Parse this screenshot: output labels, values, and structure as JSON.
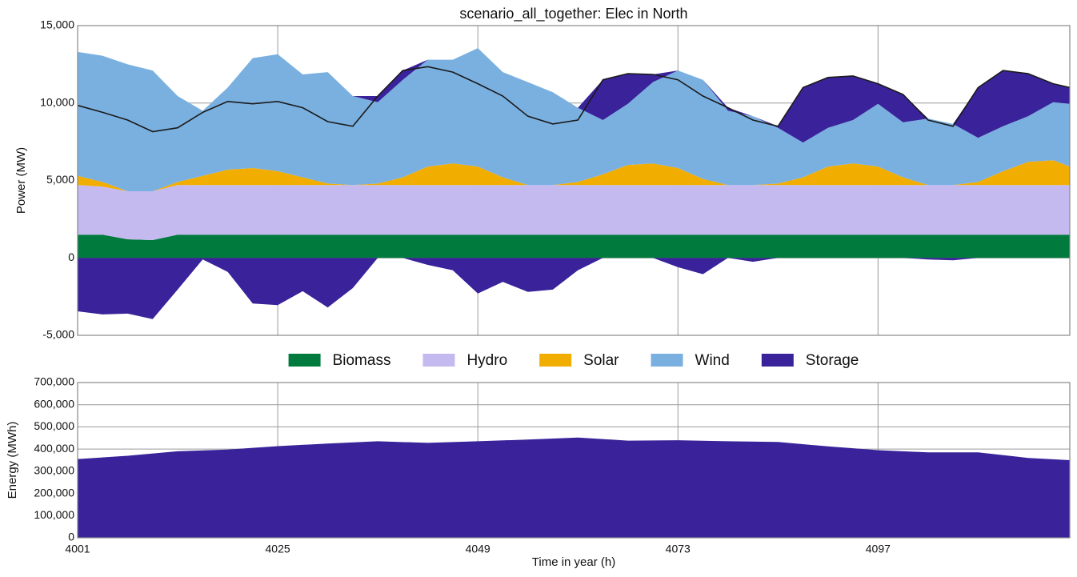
{
  "chart_data": [
    {
      "type": "stacked-area",
      "title": "scenario_all_together: Elec in North",
      "ylabel": "Power (MW)",
      "x": [
        4001,
        4004,
        4007,
        4010,
        4013,
        4016,
        4019,
        4022,
        4025,
        4028,
        4031,
        4034,
        4037,
        4040,
        4043,
        4046,
        4049,
        4052,
        4055,
        4058,
        4061,
        4064,
        4067,
        4070,
        4073,
        4076,
        4079,
        4082,
        4085,
        4088,
        4091,
        4094,
        4097,
        4100,
        4103,
        4106,
        4109,
        4112,
        4115,
        4118,
        4120
      ],
      "series": [
        {
          "name": "Biomass",
          "color": "#007a3d",
          "values": [
            1500,
            1500,
            1200,
            1150,
            1500,
            1500,
            1500,
            1500,
            1500,
            1500,
            1500,
            1500,
            1500,
            1500,
            1500,
            1500,
            1500,
            1500,
            1500,
            1500,
            1500,
            1500,
            1500,
            1500,
            1500,
            1500,
            1500,
            1500,
            1500,
            1500,
            1500,
            1500,
            1500,
            1500,
            1500,
            1500,
            1500,
            1500,
            1500,
            1500,
            1500
          ]
        },
        {
          "name": "Hydro",
          "color": "#c5baf0",
          "values": [
            3200,
            3100,
            3100,
            3150,
            3200,
            3200,
            3200,
            3200,
            3200,
            3200,
            3200,
            3200,
            3200,
            3200,
            3200,
            3200,
            3200,
            3200,
            3200,
            3200,
            3200,
            3200,
            3200,
            3200,
            3200,
            3200,
            3200,
            3200,
            3200,
            3200,
            3200,
            3200,
            3200,
            3200,
            3200,
            3200,
            3200,
            3200,
            3200,
            3200,
            3200
          ]
        },
        {
          "name": "Solar",
          "color": "#f2ae00",
          "values": [
            600,
            300,
            0,
            0,
            200,
            600,
            1000,
            1100,
            900,
            500,
            100,
            0,
            100,
            500,
            1200,
            1400,
            1200,
            500,
            0,
            0,
            200,
            700,
            1300,
            1400,
            1100,
            400,
            0,
            0,
            100,
            500,
            1200,
            1400,
            1200,
            500,
            0,
            0,
            200,
            900,
            1500,
            1600,
            1200
          ]
        },
        {
          "name": "Wind",
          "color": "#7ab0e0",
          "values": [
            8000,
            8150,
            8200,
            7800,
            5550,
            4200,
            5300,
            7100,
            7550,
            6650,
            7200,
            5750,
            5250,
            6300,
            6900,
            6700,
            7650,
            6800,
            6650,
            6000,
            4800,
            3500,
            3950,
            5250,
            6300,
            6400,
            4800,
            4450,
            3600,
            2250,
            2500,
            2800,
            4050,
            3550,
            4300,
            3950,
            2850,
            2900,
            2950,
            3750,
            4050
          ]
        },
        {
          "name": "Storage",
          "color": "#3a239a",
          "values": [
            -3450,
            -3650,
            -3600,
            -3950,
            -2050,
            -100,
            -900,
            -2950,
            -3050,
            -2150,
            -3200,
            -1950,
            400,
            600,
            -450,
            -800,
            -2300,
            -1550,
            -2200,
            -2050,
            -800,
            2600,
            1950,
            500,
            -600,
            -1050,
            200,
            -250,
            100,
            3550,
            3250,
            2850,
            1300,
            1800,
            -100,
            -150,
            3250,
            3600,
            2750,
            1200,
            1050
          ]
        }
      ],
      "line": {
        "color": "#1a1a1a",
        "values": [
          9850,
          9400,
          8900,
          8150,
          8400,
          9400,
          10100,
          9950,
          10100,
          9700,
          8800,
          8500,
          10450,
          12100,
          12350,
          12000,
          11250,
          10450,
          9150,
          8650,
          8900,
          11500,
          11900,
          11850,
          11500,
          10450,
          9700,
          8900,
          8500,
          11000,
          11650,
          11750,
          11250,
          10550,
          8900,
          8500,
          11000,
          12100,
          11900,
          11250,
          11000
        ]
      },
      "xlim": [
        4001,
        4120
      ],
      "xticks": [
        4001,
        4025,
        4049,
        4073,
        4097
      ],
      "ylim": [
        -5000,
        15000
      ],
      "yticks": [
        {
          "value": -5000,
          "label": "-5,000"
        },
        0,
        {
          "value": 5000,
          "label": "5,000"
        },
        {
          "value": 10000,
          "label": "10,000"
        },
        {
          "value": 15000,
          "label": "15,000"
        }
      ],
      "grid": true,
      "legend": "below"
    },
    {
      "type": "area",
      "ylabel": "Energy (MWh)",
      "xlabel": "Time in year (h)",
      "color": "#3a239a",
      "x": [
        4001,
        4007,
        4013,
        4019,
        4025,
        4031,
        4037,
        4043,
        4049,
        4055,
        4061,
        4067,
        4073,
        4079,
        4085,
        4091,
        4097,
        4103,
        4109,
        4115,
        4120
      ],
      "values": [
        355000,
        370000,
        390000,
        398000,
        413000,
        425000,
        435000,
        428000,
        435000,
        443000,
        452000,
        438000,
        440000,
        435000,
        432000,
        412000,
        395000,
        385000,
        385000,
        360000,
        350000
      ],
      "xlim": [
        4001,
        4120
      ],
      "xticks": [
        4001,
        4025,
        4049,
        4073,
        4097
      ],
      "ylim": [
        0,
        700000
      ],
      "yticks": [
        0,
        {
          "value": 100000,
          "label": "100,000"
        },
        {
          "value": 200000,
          "label": "200,000"
        },
        {
          "value": 300000,
          "label": "300,000"
        },
        {
          "value": 400000,
          "label": "400,000"
        },
        {
          "value": 500000,
          "label": "500,000"
        },
        {
          "value": 600000,
          "label": "600,000"
        },
        {
          "value": 700000,
          "label": "700,000"
        }
      ],
      "grid": true
    }
  ]
}
